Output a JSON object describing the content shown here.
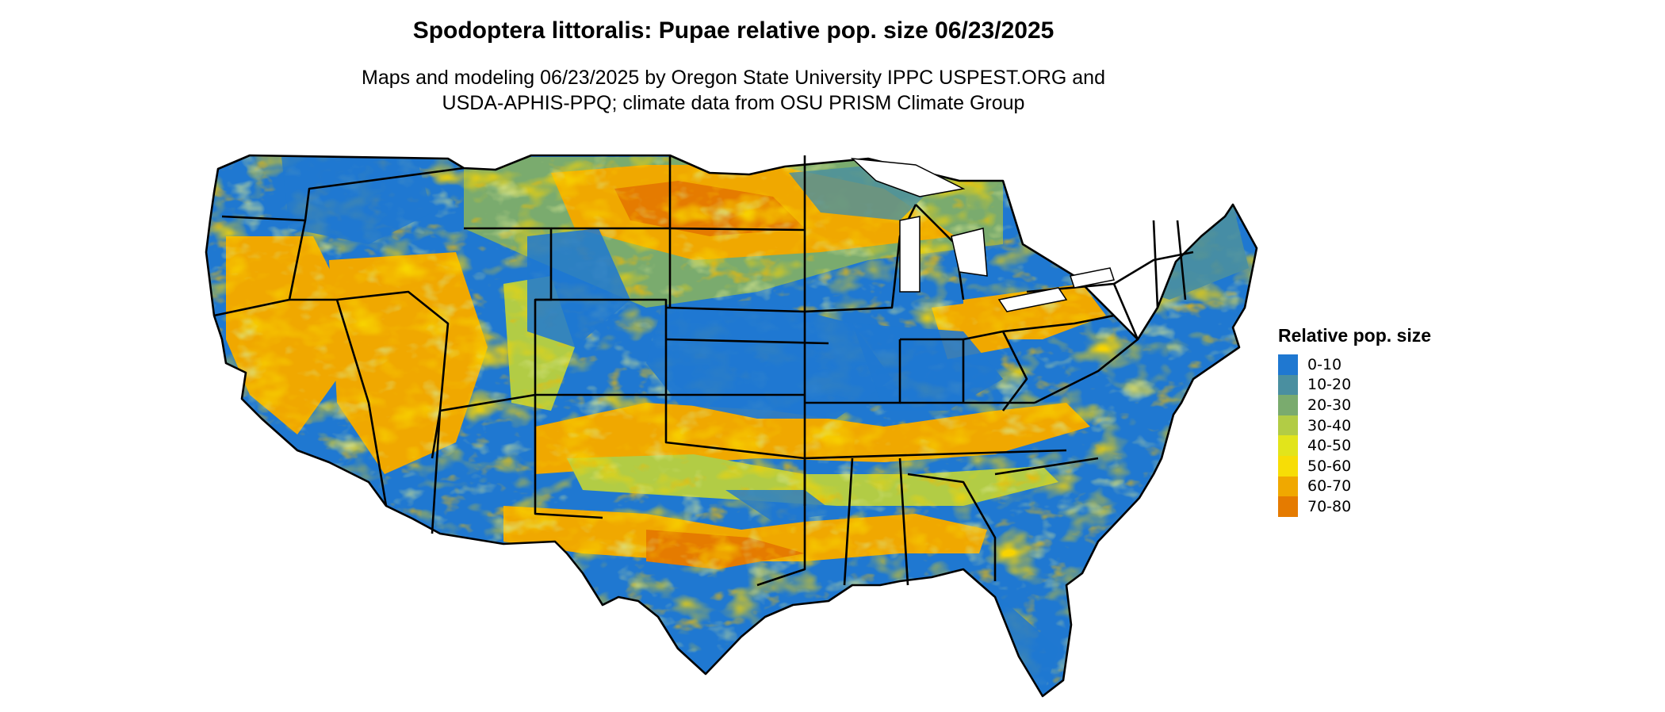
{
  "title": "Spodoptera littoralis: Pupae relative pop. size 06/23/2025",
  "subtitle": {
    "line1": "Maps and modeling 06/23/2025 by Oregon State University IPPC USPEST.ORG and",
    "line2": "USDA-APHIS-PPQ; climate data from OSU PRISM Climate Group"
  },
  "legend": {
    "title": "Relative pop. size",
    "items": [
      {
        "label": "0-10",
        "color": "#1f78d1"
      },
      {
        "label": "10-20",
        "color": "#4a8fa0"
      },
      {
        "label": "20-30",
        "color": "#7aab6e"
      },
      {
        "label": "30-40",
        "color": "#b2cc45"
      },
      {
        "label": "40-50",
        "color": "#e2e41b"
      },
      {
        "label": "50-60",
        "color": "#f7dd06"
      },
      {
        "label": "60-70",
        "color": "#f0a800"
      },
      {
        "label": "70-80",
        "color": "#e57b00"
      }
    ]
  },
  "map": {
    "region": "contiguous-united-states",
    "border_color": "#000000"
  }
}
